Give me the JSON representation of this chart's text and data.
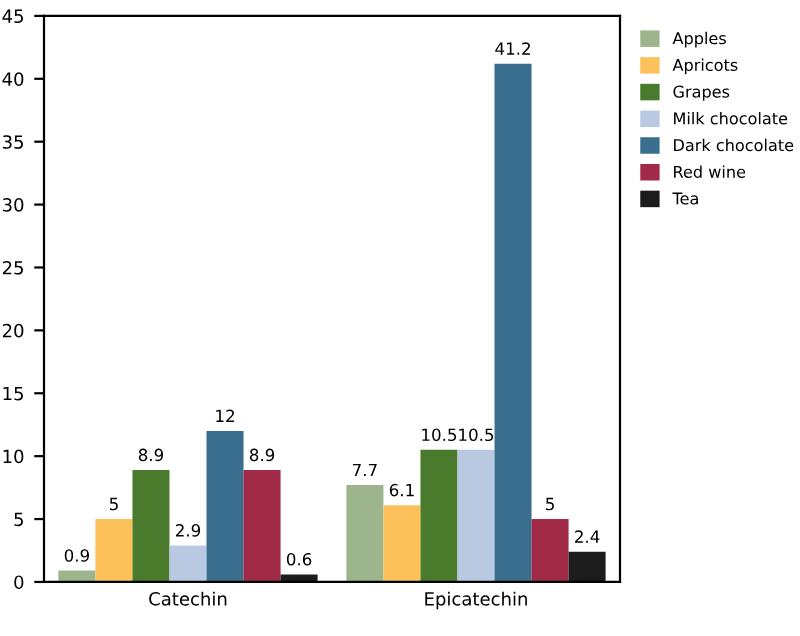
{
  "chart_data": {
    "type": "bar",
    "categories": [
      "Catechin",
      "Epicatechin"
    ],
    "series": [
      {
        "name": "Apples",
        "color": "#9cb58c",
        "values": [
          0.9,
          7.7
        ]
      },
      {
        "name": "Apricots",
        "color": "#fcc15a",
        "values": [
          5,
          6.1
        ]
      },
      {
        "name": "Grapes",
        "color": "#4a7a2c",
        "values": [
          8.9,
          10.5
        ]
      },
      {
        "name": "Milk chocolate",
        "color": "#b8c9e1",
        "values": [
          2.9,
          10.5
        ]
      },
      {
        "name": "Dark chocolate",
        "color": "#3a6e8f",
        "values": [
          12,
          41.2
        ]
      },
      {
        "name": "Red wine",
        "color": "#a02a48",
        "values": [
          8.9,
          5
        ]
      },
      {
        "name": "Tea",
        "color": "#1c1c1c",
        "values": [
          0.6,
          2.4
        ]
      }
    ],
    "ylim": [
      0,
      45
    ],
    "yticks": [
      0,
      5,
      10,
      15,
      20,
      25,
      30,
      35,
      40,
      45
    ],
    "data_labels": true,
    "legend": "right",
    "grid": false
  }
}
